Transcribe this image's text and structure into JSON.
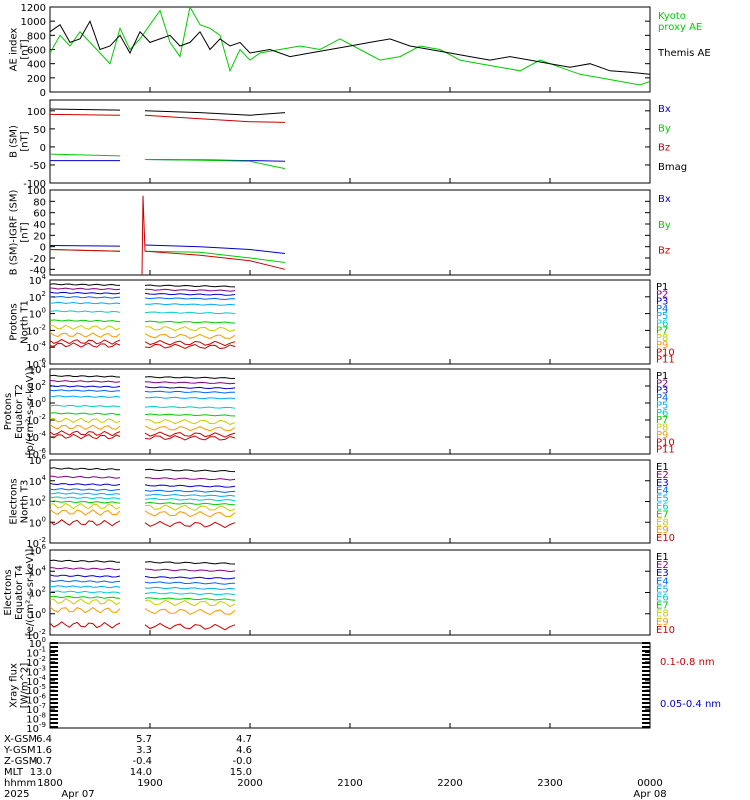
{
  "colors": {
    "black": "#000000",
    "blue": "#0000cc",
    "green": "#00cc00",
    "red": "#cc0000"
  },
  "chart_data": [
    {
      "type": "line",
      "ylabel_lines": [
        "AE index",
        "[nT]"
      ],
      "ylim": [
        0,
        1200
      ],
      "yticks": [
        "1200",
        "1000",
        "800",
        "600",
        "400",
        "200",
        "0"
      ],
      "tick_values": [
        1200,
        1000,
        800,
        600,
        400,
        200,
        0
      ],
      "series": [
        {
          "name": "Kyoto proxy AE",
          "name_lines": [
            "Kyoto",
            "proxy AE"
          ],
          "color": "#00cc00",
          "x": [
            18.0,
            18.1,
            18.2,
            18.3,
            18.4,
            18.5,
            18.6,
            18.7,
            18.8,
            18.9,
            19.0,
            19.1,
            19.2,
            19.3,
            19.4,
            19.5,
            19.6,
            19.7,
            19.8,
            19.9,
            20.0,
            20.1,
            20.3,
            20.5,
            20.7,
            20.9,
            21.1,
            21.3,
            21.5,
            21.7,
            21.9,
            22.1,
            22.3,
            22.5,
            22.7,
            22.9,
            23.1,
            23.3,
            23.5,
            23.7,
            23.9,
            24.0
          ],
          "y": [
            550,
            800,
            650,
            850,
            700,
            550,
            400,
            900,
            600,
            750,
            950,
            1150,
            700,
            500,
            1200,
            950,
            900,
            800,
            300,
            600,
            450,
            550,
            600,
            650,
            600,
            750,
            600,
            450,
            500,
            650,
            600,
            450,
            400,
            350,
            300,
            450,
            350,
            250,
            200,
            150,
            100,
            150
          ]
        },
        {
          "name": "Themis AE",
          "name_lines": [
            "Themis AE"
          ],
          "color": "#000000",
          "x": [
            18.0,
            18.1,
            18.2,
            18.3,
            18.4,
            18.5,
            18.6,
            18.7,
            18.8,
            18.9,
            19.0,
            19.1,
            19.2,
            19.3,
            19.4,
            19.5,
            19.6,
            19.7,
            19.8,
            19.9,
            20.0,
            20.2,
            20.4,
            20.6,
            20.8,
            21.0,
            21.2,
            21.4,
            21.6,
            21.8,
            22.0,
            22.2,
            22.4,
            22.6,
            22.8,
            23.0,
            23.2,
            23.4,
            23.6,
            23.8,
            24.0
          ],
          "y": [
            850,
            950,
            700,
            750,
            1000,
            600,
            650,
            800,
            550,
            850,
            700,
            750,
            800,
            650,
            700,
            850,
            600,
            750,
            650,
            700,
            550,
            600,
            500,
            550,
            600,
            650,
            700,
            750,
            650,
            600,
            550,
            500,
            450,
            500,
            450,
            400,
            350,
            400,
            300,
            280,
            250
          ]
        }
      ]
    },
    {
      "type": "line",
      "ylabel_lines": [
        "B (SM)",
        "[nT]"
      ],
      "ylim": [
        -100,
        130
      ],
      "yticks": [
        "100",
        "50",
        "0",
        "-50",
        "-100"
      ],
      "tick_values": [
        100,
        50,
        0,
        -50,
        -100
      ],
      "series": [
        {
          "name": "Bx",
          "color": "#0000cc",
          "x": [
            18.0,
            18.7,
            18.95,
            19.5,
            20.0,
            20.35
          ],
          "y": [
            -38,
            -38,
            -35,
            -36,
            -38,
            -40
          ],
          "gap": [
            18.7,
            18.95
          ]
        },
        {
          "name": "By",
          "color": "#00cc00",
          "x": [
            18.0,
            18.7,
            18.95,
            19.5,
            20.0,
            20.35
          ],
          "y": [
            -20,
            -25,
            -35,
            -37,
            -40,
            -60
          ],
          "gap": [
            18.7,
            18.95
          ]
        },
        {
          "name": "Bz",
          "color": "#cc0000",
          "x": [
            18.0,
            18.7,
            18.95,
            19.5,
            20.0,
            20.35
          ],
          "y": [
            90,
            88,
            88,
            78,
            70,
            68
          ],
          "gap": [
            18.7,
            18.95
          ]
        },
        {
          "name": "Bmag",
          "color": "#000000",
          "x": [
            18.0,
            18.7,
            18.95,
            19.5,
            20.0,
            20.35
          ],
          "y": [
            105,
            102,
            100,
            95,
            88,
            95
          ],
          "gap": [
            18.7,
            18.95
          ]
        }
      ]
    },
    {
      "type": "line",
      "ylabel_lines": [
        "B (SM)-IGRF (SM)",
        "[nT]"
      ],
      "ylim": [
        -50,
        100
      ],
      "yticks": [
        "100",
        "80",
        "60",
        "40",
        "20",
        "0",
        "-20",
        "-40"
      ],
      "tick_values": [
        100,
        80,
        60,
        40,
        20,
        0,
        -20,
        -40
      ],
      "series": [
        {
          "name": "Bx",
          "color": "#0000cc",
          "x": [
            18.0,
            18.7,
            18.95,
            19.5,
            20.0,
            20.35
          ],
          "y": [
            2,
            1,
            3,
            0,
            -5,
            -12
          ],
          "gap": [
            18.7,
            18.95
          ]
        },
        {
          "name": "By",
          "color": "#00cc00",
          "x": [
            18.0,
            18.7,
            18.95,
            19.5,
            20.0,
            20.35
          ],
          "y": [
            -5,
            -8,
            -8,
            -10,
            -20,
            -28
          ],
          "gap": [
            18.7,
            18.95
          ]
        },
        {
          "name": "Bz",
          "color": "#cc0000",
          "x": [
            18.0,
            18.7,
            18.92,
            18.93,
            18.95,
            19.5,
            20.0,
            20.35
          ],
          "y": [
            -5,
            -8,
            -50,
            90,
            -8,
            -15,
            -25,
            -40
          ],
          "gap": [
            18.7,
            18.92
          ]
        }
      ]
    },
    {
      "type": "line",
      "log": true,
      "ylabel_lines": [
        "Protons",
        "North T1"
      ],
      "ylim_exp": [
        -6,
        4
      ],
      "yticks_exp": [
        "4",
        "2",
        "0",
        "-2",
        "-4",
        "-6"
      ],
      "series_names": [
        "P1",
        "P2",
        "P3",
        "P4",
        "P5",
        "P6",
        "P7",
        "P8",
        "P9",
        "P10",
        "P11"
      ],
      "series_colors": [
        "#000000",
        "#800080",
        "#0000cc",
        "#0066ff",
        "#00aaff",
        "#00cccc",
        "#00cc00",
        "#cccc00",
        "#ff9900",
        "#cc0000",
        "#cc0000"
      ],
      "series_logvals": [
        3.5,
        3.0,
        2.5,
        2.0,
        1.3,
        0.3,
        -0.8,
        -1.6,
        -2.5,
        -3.3,
        -3.7
      ],
      "segments": [
        [
          18.0,
          18.7
        ],
        [
          18.95,
          19.85
        ]
      ]
    },
    {
      "type": "line",
      "log": true,
      "ylabel_lines": [
        "Protons",
        "Equator T2",
        "[p/(cm²-s-sr-keV)]"
      ],
      "ylim_exp": [
        -6,
        4
      ],
      "yticks_exp": [
        "4",
        "2",
        "0",
        "-2",
        "-4",
        "-6"
      ],
      "series_names": [
        "P1",
        "P2",
        "P3",
        "P4",
        "P5",
        "P6",
        "P7",
        "P8",
        "P9",
        "P10",
        "P11"
      ],
      "series_colors": [
        "#000000",
        "#800080",
        "#0000cc",
        "#0066ff",
        "#00aaff",
        "#00cccc",
        "#00cc00",
        "#cccc00",
        "#ff9900",
        "#cc0000",
        "#cc0000"
      ],
      "series_logvals": [
        3.2,
        2.6,
        2.0,
        1.5,
        0.8,
        -0.3,
        -1.2,
        -2.0,
        -2.8,
        -3.5,
        -3.9
      ],
      "segments": [
        [
          18.0,
          18.7
        ],
        [
          18.95,
          19.85
        ]
      ]
    },
    {
      "type": "line",
      "log": true,
      "ylabel_lines": [
        "Electrons",
        "North T3"
      ],
      "ylim_exp": [
        -2,
        6
      ],
      "yticks_exp": [
        "6",
        "4",
        "2",
        "0",
        "-2"
      ],
      "series_names": [
        "E1",
        "E2",
        "E3",
        "E4",
        "E5",
        "E6",
        "E7",
        "E8",
        "E9",
        "E10"
      ],
      "series_colors": [
        "#000000",
        "#800080",
        "#0000cc",
        "#0066ff",
        "#00aaff",
        "#00cccc",
        "#00cc00",
        "#cccc00",
        "#ff9900",
        "#cc0000"
      ],
      "series_logvals": [
        5.2,
        4.4,
        3.7,
        3.2,
        2.8,
        2.4,
        2.0,
        1.6,
        1.0,
        0.0
      ],
      "segments": [
        [
          18.0,
          18.7
        ],
        [
          18.95,
          19.85
        ]
      ]
    },
    {
      "type": "line",
      "log": true,
      "ylabel_lines": [
        "Electrons",
        "Equator T4",
        "[e/(cm²-s-sr-keV)]"
      ],
      "ylim_exp": [
        -2,
        6
      ],
      "yticks_exp": [
        "6",
        "4",
        "2",
        "0",
        "-2"
      ],
      "series_names": [
        "E1",
        "E2",
        "E3",
        "E4",
        "E5",
        "E6",
        "E7",
        "E8",
        "E9",
        "E10"
      ],
      "series_colors": [
        "#000000",
        "#800080",
        "#0000cc",
        "#0066ff",
        "#00aaff",
        "#00cccc",
        "#00cc00",
        "#cccc00",
        "#ff9900",
        "#cc0000"
      ],
      "series_logvals": [
        5.0,
        4.3,
        3.6,
        3.1,
        2.6,
        2.1,
        1.6,
        1.2,
        0.4,
        -1.0
      ],
      "segments": [
        [
          18.0,
          18.7
        ],
        [
          18.95,
          19.85
        ]
      ]
    },
    {
      "type": "line",
      "log": true,
      "ylabel_lines": [
        "Xray flux",
        "[W/m^2]"
      ],
      "ylim_exp": [
        -9,
        0
      ],
      "yticks_exp": [
        "0",
        "-1",
        "-2",
        "-3",
        "-4",
        "-5",
        "-6",
        "-7",
        "-8",
        "-9"
      ],
      "series": [
        {
          "name": "0.1-0.8 nm",
          "color": "#cc0000"
        },
        {
          "name": "0.05-0.4 nm",
          "color": "#0000cc"
        }
      ]
    }
  ],
  "xaxis": {
    "xlim": [
      18.0,
      24.0
    ],
    "major_ticks": [
      18,
      19,
      20,
      21,
      22,
      23,
      24
    ],
    "hhmm_labels": [
      "1800",
      "1900",
      "2000",
      "2100",
      "2200",
      "2300",
      "0000"
    ],
    "row_labels": [
      "X-GSM",
      "Y-GSM",
      "Z-GSM",
      "MLT",
      "hhmm",
      "2025"
    ],
    "ephemeris": [
      {
        "x": 18.0,
        "values": [
          "6.4",
          "1.6",
          "-0.7",
          "13.0"
        ]
      },
      {
        "x": 19.0,
        "values": [
          "5.7",
          "3.3",
          "-0.4",
          "14.0"
        ]
      },
      {
        "x": 20.0,
        "values": [
          "4.7",
          "4.6",
          "-0.0",
          "15.0"
        ]
      }
    ],
    "date_left": "Apr 07",
    "date_right": "Apr 08"
  }
}
